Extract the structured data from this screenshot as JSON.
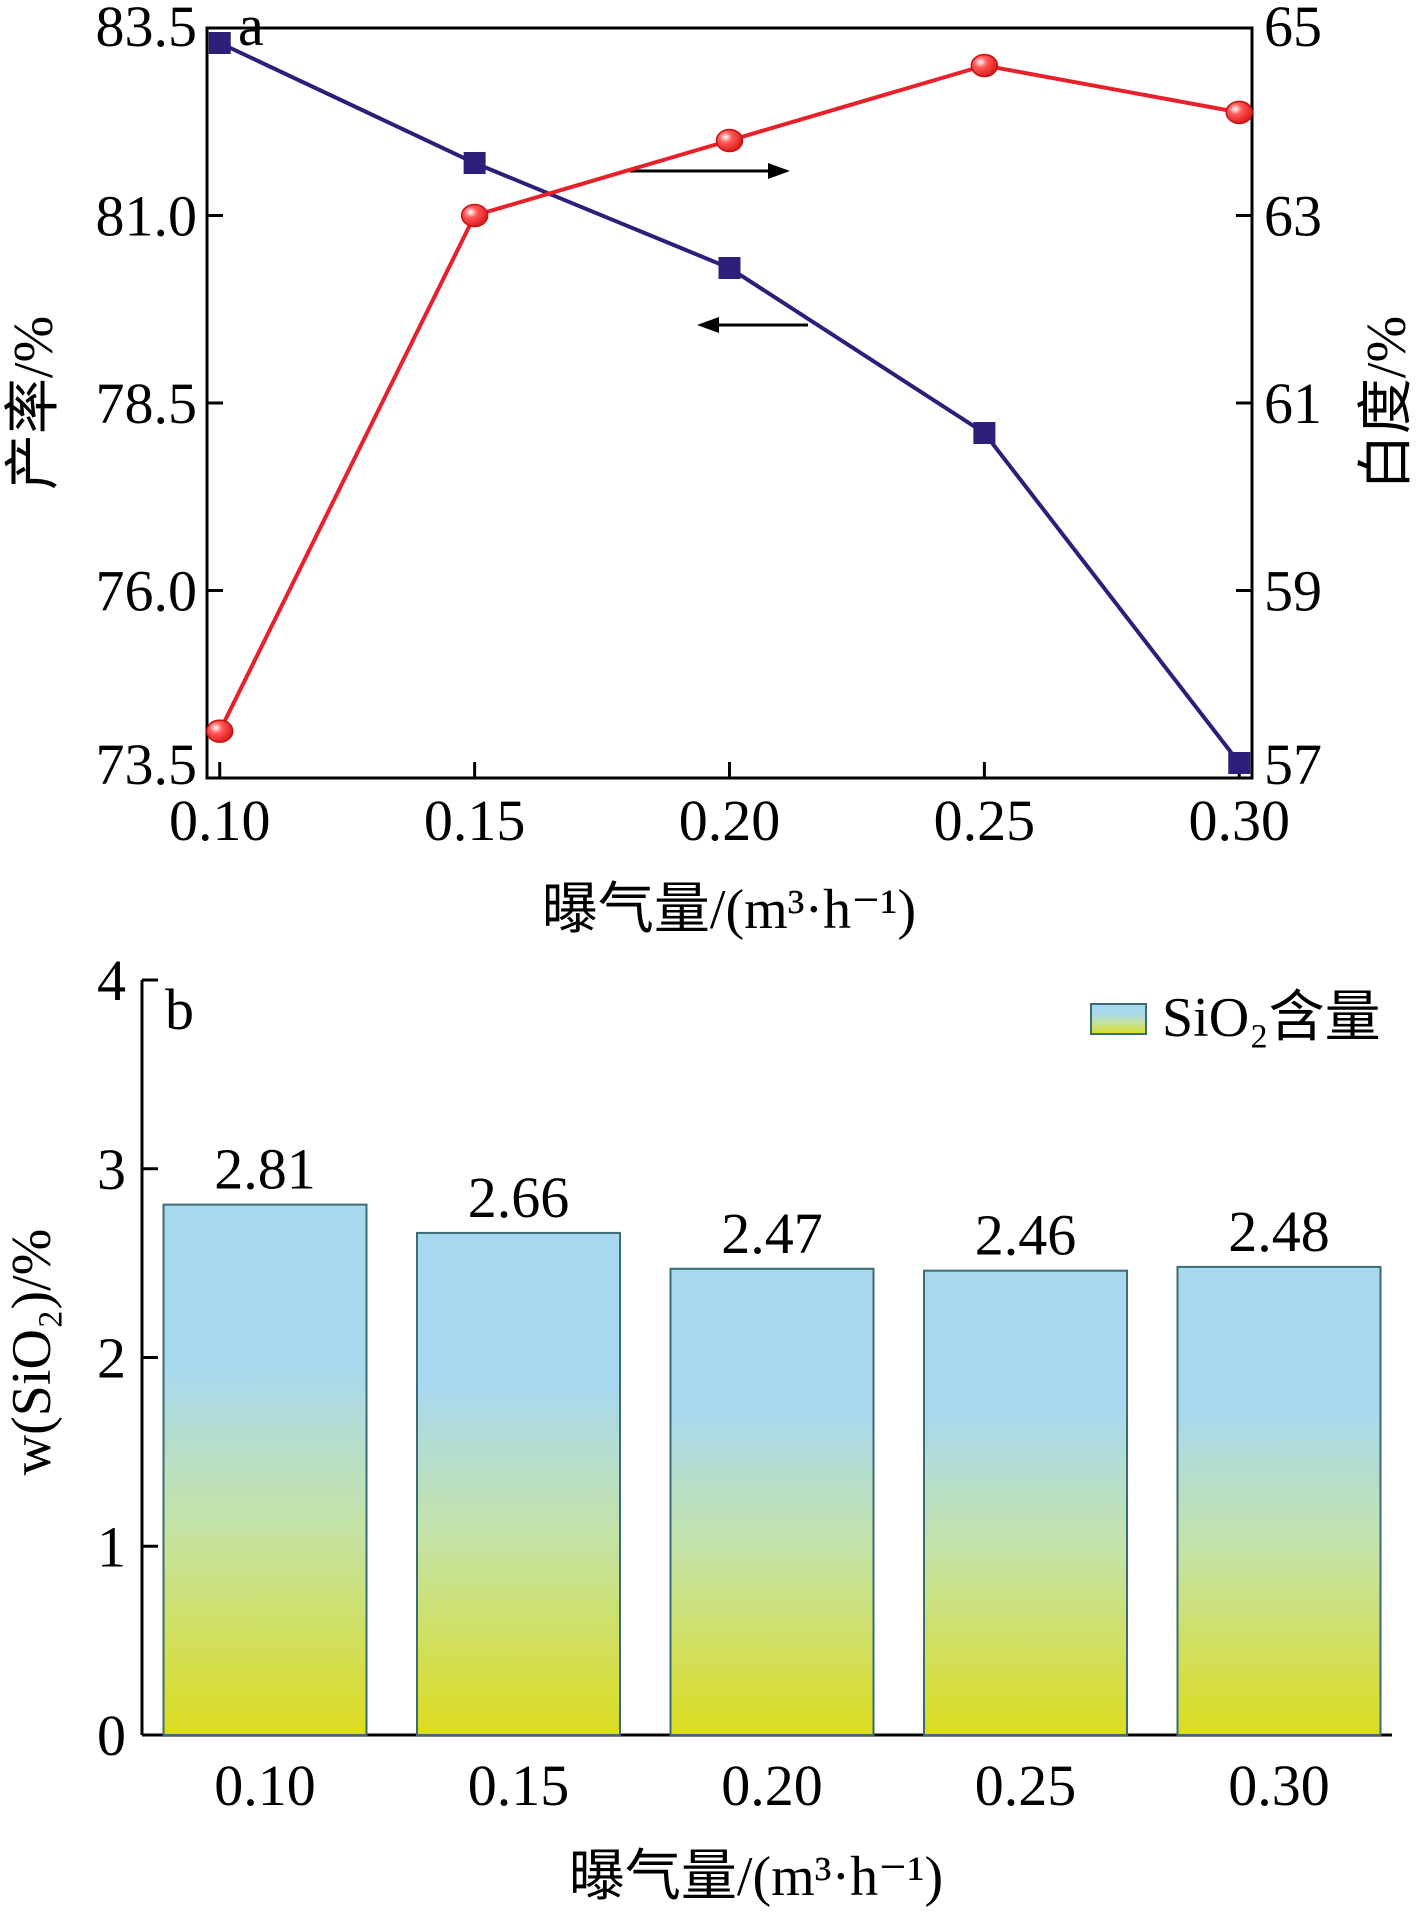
{
  "chart_data": [
    {
      "panel": "a",
      "type": "line",
      "xlabel": "曝气量/(m³·h⁻¹)",
      "ylabel_left": "产率/%",
      "ylabel_right": "白度/%",
      "x": [
        0.1,
        0.15,
        0.2,
        0.25,
        0.3
      ],
      "x_ticks": [
        "0.10",
        "0.15",
        "0.20",
        "0.25",
        "0.30"
      ],
      "ylim_left": [
        73.5,
        83.5
      ],
      "ylim_right": [
        57,
        65
      ],
      "y_ticks_left": [
        "83.5",
        "81.0",
        "78.5",
        "76.0",
        "73.5"
      ],
      "y_ticks_right": [
        "65",
        "63",
        "61",
        "59",
        "57"
      ],
      "series": [
        {
          "axis": "left",
          "marker": "square",
          "color": "#2b1f7a",
          "values": [
            83.3,
            81.7,
            80.3,
            78.1,
            73.7
          ]
        },
        {
          "axis": "right",
          "marker": "circle",
          "color": "#e8202a",
          "values": [
            57.5,
            63.0,
            63.8,
            64.6,
            64.1
          ]
        }
      ],
      "grid": false
    },
    {
      "panel": "b",
      "type": "bar",
      "xlabel": "曝气量/(m³·h⁻¹)",
      "ylabel": "w(SiO₂)/%",
      "categories": [
        "0.10",
        "0.15",
        "0.20",
        "0.25",
        "0.30"
      ],
      "values": [
        2.81,
        2.66,
        2.47,
        2.46,
        2.48
      ],
      "value_labels": [
        "2.81",
        "2.66",
        "2.47",
        "2.46",
        "2.48"
      ],
      "ylim": [
        0,
        4
      ],
      "y_ticks": [
        "0",
        "1",
        "2",
        "3",
        "4"
      ],
      "legend": {
        "label": "SiO₂含量",
        "placement": "top-right"
      },
      "colors": {
        "top": "#a8d8f0",
        "bottom": "#dcdc1e",
        "edge": "#3b6b73"
      },
      "grid": false
    }
  ]
}
